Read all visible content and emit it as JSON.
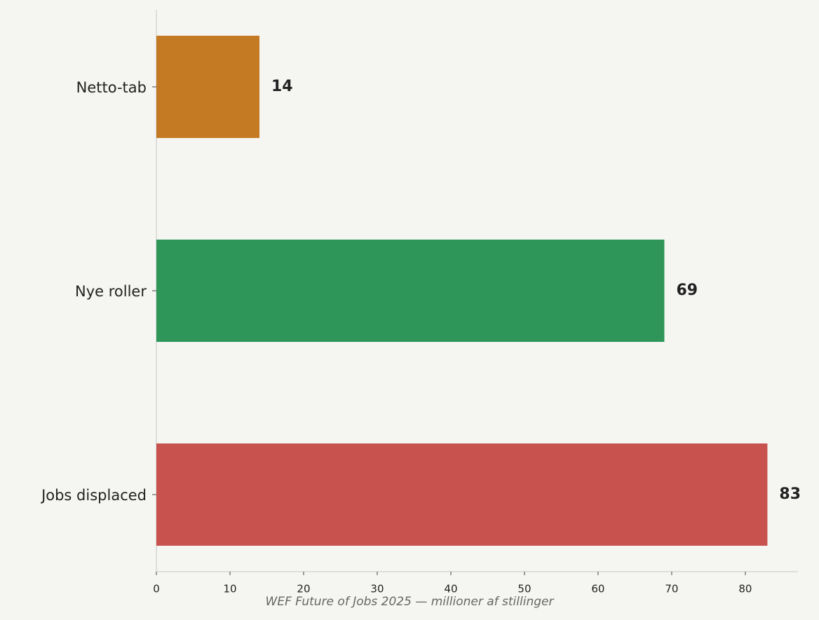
{
  "chart_data": {
    "type": "barh",
    "categories": [
      "Netto-tab",
      "Nye roller",
      "Jobs displaced"
    ],
    "values": [
      14,
      69,
      83
    ],
    "colors": [
      "#c47a22",
      "#2e9659",
      "#c8524e"
    ],
    "xlabel": "WEF Future of Jobs 2025 — millioner af stillinger",
    "xlim": [
      0,
      87.15
    ],
    "xticks": [
      0,
      10,
      20,
      30,
      40,
      50,
      60,
      70,
      80
    ]
  }
}
